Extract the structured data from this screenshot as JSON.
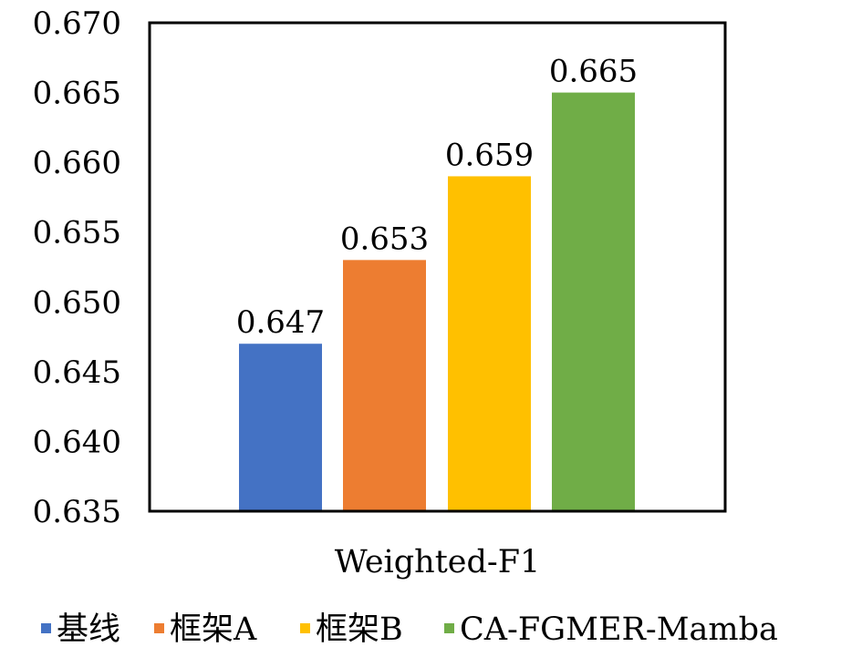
{
  "chart_data": {
    "type": "bar",
    "title": "",
    "xlabel": "",
    "ylabel": "",
    "categories": [
      "Weighted-F1"
    ],
    "series": [
      {
        "name": "基线",
        "values": [
          0.647
        ],
        "color": "#4472C4",
        "data_label": "0.647"
      },
      {
        "name": "框架A",
        "values": [
          0.653
        ],
        "color": "#ED7D31",
        "data_label": "0.653"
      },
      {
        "name": "框架B",
        "values": [
          0.659
        ],
        "color": "#FFC000",
        "data_label": "0.659"
      },
      {
        "name": "CA-FGMER-Mamba",
        "values": [
          0.665
        ],
        "color": "#70AD47",
        "data_label": "0.665"
      }
    ],
    "ylim": [
      0.635,
      0.67
    ],
    "y_ticks": [
      "0.635",
      "0.640",
      "0.645",
      "0.650",
      "0.655",
      "0.660",
      "0.665",
      "0.670"
    ],
    "grid": false,
    "legend": {
      "position": "bottom"
    }
  }
}
